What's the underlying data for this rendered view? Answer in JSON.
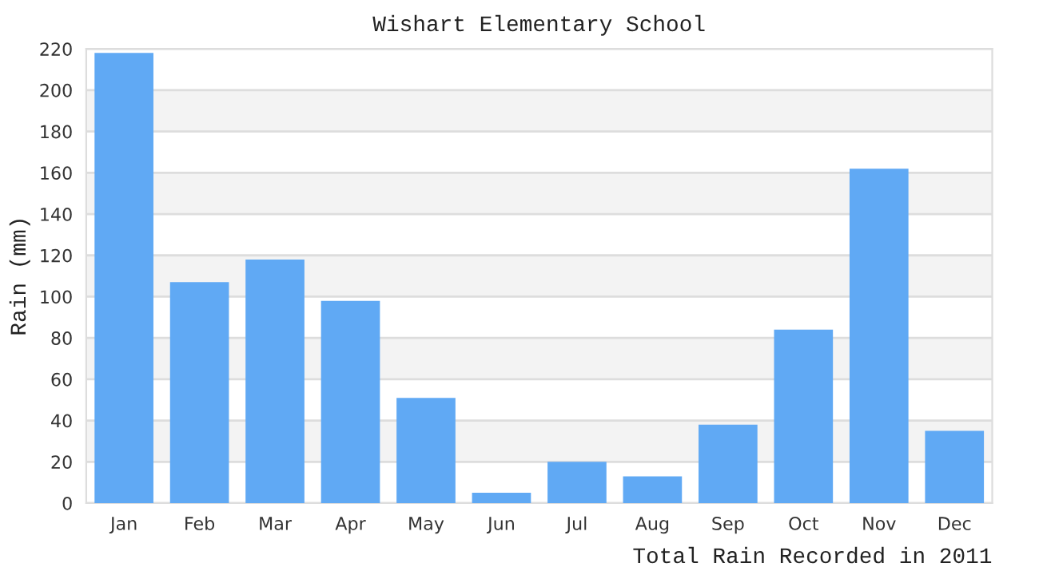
{
  "chart_data": {
    "type": "bar",
    "title": "Wishart Elementary School",
    "xlabel": "Total Rain Recorded in 2011",
    "ylabel": "Rain (mm)",
    "categories": [
      "Jan",
      "Feb",
      "Mar",
      "Apr",
      "May",
      "Jun",
      "Jul",
      "Aug",
      "Sep",
      "Oct",
      "Nov",
      "Dec"
    ],
    "values": [
      218,
      107,
      118,
      98,
      51,
      5,
      20,
      13,
      38,
      84,
      162,
      35
    ],
    "color": "#60a9f4",
    "ylim": [
      0,
      220
    ],
    "yticks": [
      0,
      20,
      40,
      60,
      80,
      100,
      120,
      140,
      160,
      180,
      200,
      220
    ],
    "grid": "y"
  }
}
